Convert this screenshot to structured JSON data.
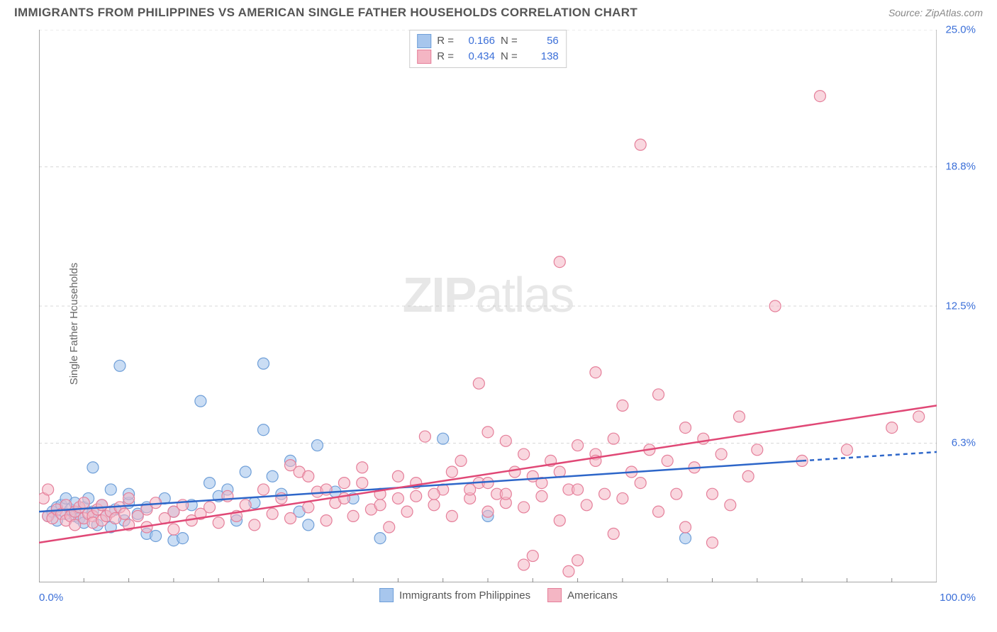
{
  "title": "IMMIGRANTS FROM PHILIPPINES VS AMERICAN SINGLE FATHER HOUSEHOLDS CORRELATION CHART",
  "source": "Source: ZipAtlas.com",
  "y_axis_label": "Single Father Households",
  "watermark_zip": "ZIP",
  "watermark_atlas": "atlas",
  "chart": {
    "type": "scatter",
    "xlim": [
      0,
      100
    ],
    "ylim": [
      0,
      25
    ],
    "x_min_label": "0.0%",
    "x_max_label": "100.0%",
    "y_ticks": [
      {
        "value": 6.3,
        "label": "6.3%"
      },
      {
        "value": 12.5,
        "label": "12.5%"
      },
      {
        "value": 18.8,
        "label": "18.8%"
      },
      {
        "value": 25.0,
        "label": "25.0%"
      }
    ],
    "x_ticks": [
      0,
      5,
      10,
      15,
      20,
      25,
      30,
      35,
      40,
      45,
      50,
      55,
      60,
      65,
      70,
      75,
      80,
      85,
      90,
      95,
      100
    ],
    "background_color": "#ffffff",
    "grid_color": "#d8d8d8",
    "grid_dash": "4,4",
    "axis_line_color": "#888888",
    "marker_radius": 8,
    "marker_stroke_width": 1.2,
    "series": [
      {
        "id": "philippines",
        "label": "Immigrants from Philippines",
        "fill_color": "#a7c6ed",
        "stroke_color": "#6f9fd8",
        "fill_opacity": 0.6,
        "R": "0.166",
        "N": "56",
        "trend": {
          "x1": 0,
          "y1": 3.2,
          "x2": 85,
          "y2": 5.5,
          "ext_x2": 100,
          "ext_y2": 5.9,
          "color": "#2d66c9",
          "width": 2.5,
          "dash_ext": "6,5"
        },
        "points": [
          [
            1,
            3.0
          ],
          [
            1.5,
            3.2
          ],
          [
            2,
            3.4
          ],
          [
            2,
            2.8
          ],
          [
            2.5,
            3.5
          ],
          [
            3,
            3.1
          ],
          [
            3,
            3.8
          ],
          [
            3.5,
            3.3
          ],
          [
            4,
            3.0
          ],
          [
            4,
            3.6
          ],
          [
            4.5,
            2.9
          ],
          [
            5,
            3.4
          ],
          [
            5,
            2.7
          ],
          [
            5.5,
            3.8
          ],
          [
            6,
            3.2
          ],
          [
            6,
            5.2
          ],
          [
            6.5,
            2.6
          ],
          [
            7,
            3.5
          ],
          [
            7.5,
            3.0
          ],
          [
            8,
            4.2
          ],
          [
            8,
            2.5
          ],
          [
            8.5,
            3.3
          ],
          [
            9,
            9.8
          ],
          [
            9.5,
            2.8
          ],
          [
            10,
            3.6
          ],
          [
            10,
            4.0
          ],
          [
            11,
            3.1
          ],
          [
            12,
            3.4
          ],
          [
            12,
            2.2
          ],
          [
            13,
            2.1
          ],
          [
            14,
            3.8
          ],
          [
            15,
            3.2
          ],
          [
            15,
            1.9
          ],
          [
            16,
            2.0
          ],
          [
            17,
            3.5
          ],
          [
            18,
            8.2
          ],
          [
            19,
            4.5
          ],
          [
            20,
            3.9
          ],
          [
            21,
            4.2
          ],
          [
            22,
            2.8
          ],
          [
            23,
            5.0
          ],
          [
            24,
            3.6
          ],
          [
            25,
            9.9
          ],
          [
            25,
            6.9
          ],
          [
            26,
            4.8
          ],
          [
            27,
            4.0
          ],
          [
            28,
            5.5
          ],
          [
            29,
            3.2
          ],
          [
            30,
            2.6
          ],
          [
            31,
            6.2
          ],
          [
            33,
            4.1
          ],
          [
            35,
            3.8
          ],
          [
            38,
            2.0
          ],
          [
            45,
            6.5
          ],
          [
            50,
            3.0
          ],
          [
            72,
            2.0
          ]
        ]
      },
      {
        "id": "americans",
        "label": "Americans",
        "fill_color": "#f4b6c4",
        "stroke_color": "#e57f9a",
        "fill_opacity": 0.55,
        "R": "0.434",
        "N": "138",
        "trend": {
          "x1": 0,
          "y1": 1.8,
          "x2": 100,
          "y2": 8.0,
          "color": "#e04876",
          "width": 2.5
        },
        "points": [
          [
            0.5,
            3.8
          ],
          [
            1,
            3.0
          ],
          [
            1,
            4.2
          ],
          [
            1.5,
            2.9
          ],
          [
            2,
            3.3
          ],
          [
            2.5,
            3.1
          ],
          [
            3,
            3.5
          ],
          [
            3,
            2.8
          ],
          [
            3.5,
            3.0
          ],
          [
            4,
            3.2
          ],
          [
            4,
            2.6
          ],
          [
            4.5,
            3.4
          ],
          [
            5,
            2.9
          ],
          [
            5,
            3.6
          ],
          [
            5.5,
            3.1
          ],
          [
            6,
            3.0
          ],
          [
            6,
            2.7
          ],
          [
            6.5,
            3.3
          ],
          [
            7,
            3.5
          ],
          [
            7,
            2.8
          ],
          [
            7.5,
            3.0
          ],
          [
            8,
            3.2
          ],
          [
            8.5,
            2.9
          ],
          [
            9,
            3.4
          ],
          [
            9.5,
            3.1
          ],
          [
            10,
            2.6
          ],
          [
            10,
            3.8
          ],
          [
            11,
            3.0
          ],
          [
            12,
            3.3
          ],
          [
            12,
            2.5
          ],
          [
            13,
            3.6
          ],
          [
            14,
            2.9
          ],
          [
            15,
            3.2
          ],
          [
            15,
            2.4
          ],
          [
            16,
            3.5
          ],
          [
            17,
            2.8
          ],
          [
            18,
            3.1
          ],
          [
            19,
            3.4
          ],
          [
            20,
            2.7
          ],
          [
            21,
            3.9
          ],
          [
            22,
            3.0
          ],
          [
            23,
            3.5
          ],
          [
            24,
            2.6
          ],
          [
            25,
            4.2
          ],
          [
            26,
            3.1
          ],
          [
            27,
            3.8
          ],
          [
            28,
            2.9
          ],
          [
            29,
            5.0
          ],
          [
            30,
            3.4
          ],
          [
            31,
            4.1
          ],
          [
            32,
            2.8
          ],
          [
            33,
            3.6
          ],
          [
            34,
            4.5
          ],
          [
            35,
            3.0
          ],
          [
            36,
            5.2
          ],
          [
            37,
            3.3
          ],
          [
            38,
            4.0
          ],
          [
            39,
            2.5
          ],
          [
            40,
            4.8
          ],
          [
            41,
            3.2
          ],
          [
            42,
            3.9
          ],
          [
            43,
            6.6
          ],
          [
            44,
            3.5
          ],
          [
            45,
            4.2
          ],
          [
            46,
            3.0
          ],
          [
            47,
            5.5
          ],
          [
            48,
            3.8
          ],
          [
            49,
            4.5
          ],
          [
            49,
            9.0
          ],
          [
            50,
            3.2
          ],
          [
            50,
            6.8
          ],
          [
            51,
            4.0
          ],
          [
            52,
            3.6
          ],
          [
            52,
            6.4
          ],
          [
            53,
            5.0
          ],
          [
            54,
            3.4
          ],
          [
            54,
            0.8
          ],
          [
            55,
            4.8
          ],
          [
            55,
            1.2
          ],
          [
            56,
            3.9
          ],
          [
            57,
            5.5
          ],
          [
            58,
            2.8
          ],
          [
            58,
            14.5
          ],
          [
            59,
            4.2
          ],
          [
            59,
            0.5
          ],
          [
            60,
            6.2
          ],
          [
            60,
            1.0
          ],
          [
            61,
            3.5
          ],
          [
            62,
            5.8
          ],
          [
            62,
            9.5
          ],
          [
            63,
            4.0
          ],
          [
            64,
            6.5
          ],
          [
            64,
            2.2
          ],
          [
            65,
            3.8
          ],
          [
            65,
            8.0
          ],
          [
            66,
            5.0
          ],
          [
            67,
            4.5
          ],
          [
            67,
            19.8
          ],
          [
            68,
            6.0
          ],
          [
            69,
            3.2
          ],
          [
            69,
            8.5
          ],
          [
            70,
            5.5
          ],
          [
            71,
            4.0
          ],
          [
            72,
            7.0
          ],
          [
            72,
            2.5
          ],
          [
            73,
            5.2
          ],
          [
            74,
            6.5
          ],
          [
            75,
            4.0
          ],
          [
            75,
            1.8
          ],
          [
            76,
            5.8
          ],
          [
            77,
            3.5
          ],
          [
            78,
            7.5
          ],
          [
            79,
            4.8
          ],
          [
            80,
            6.0
          ],
          [
            82,
            12.5
          ],
          [
            85,
            5.5
          ],
          [
            87,
            22.0
          ],
          [
            90,
            6.0
          ],
          [
            95,
            7.0
          ],
          [
            98,
            7.5
          ],
          [
            28,
            5.3
          ],
          [
            30,
            4.8
          ],
          [
            32,
            4.2
          ],
          [
            34,
            3.8
          ],
          [
            36,
            4.5
          ],
          [
            38,
            3.5
          ],
          [
            40,
            3.8
          ],
          [
            42,
            4.5
          ],
          [
            44,
            4.0
          ],
          [
            46,
            5.0
          ],
          [
            48,
            4.2
          ],
          [
            50,
            4.5
          ],
          [
            52,
            4.0
          ],
          [
            54,
            5.8
          ],
          [
            56,
            4.5
          ],
          [
            58,
            5.0
          ],
          [
            60,
            4.2
          ],
          [
            62,
            5.5
          ]
        ]
      }
    ]
  },
  "legend_top": {
    "r_label": "R =",
    "n_label": "N ="
  }
}
